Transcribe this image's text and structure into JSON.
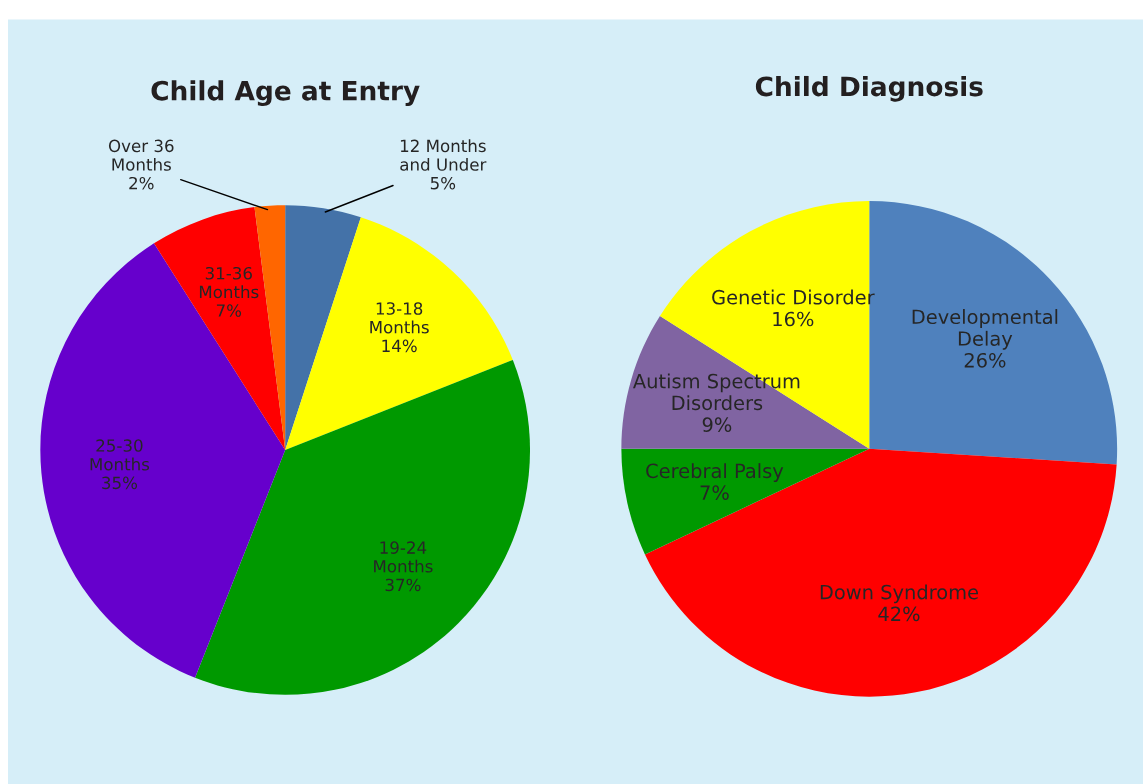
{
  "chart_data": [
    {
      "type": "pie",
      "title": "Child Age at Entry",
      "categories": [
        "12 Months\nand Under",
        "13-18\nMonths",
        "19-24\nMonths",
        "25-30\nMonths",
        "31-36\nMonths",
        "Over 36\nMonths"
      ],
      "values": [
        5,
        14,
        37,
        35,
        7,
        2
      ],
      "value_labels": [
        "5%",
        "14%",
        "37%",
        "35%",
        "7%",
        "2%"
      ],
      "colors": [
        "#4472a8",
        "#ffff00",
        "#009900",
        "#6600cc",
        "#ff0000",
        "#ff6600"
      ]
    },
    {
      "type": "pie",
      "title": "Child Diagnosis",
      "categories": [
        "Developmental\nDelay",
        "Down Syndrome",
        "Cerebral Palsy",
        "Autism Spectrum\nDisorders",
        "Genetic Disorder"
      ],
      "values": [
        26,
        42,
        7,
        9,
        16
      ],
      "value_labels": [
        "26%",
        "42%",
        "7%",
        "9%",
        "16%"
      ],
      "colors": [
        "#4f81bd",
        "#ff0000",
        "#009900",
        "#8064a2",
        "#ffff00"
      ]
    }
  ]
}
